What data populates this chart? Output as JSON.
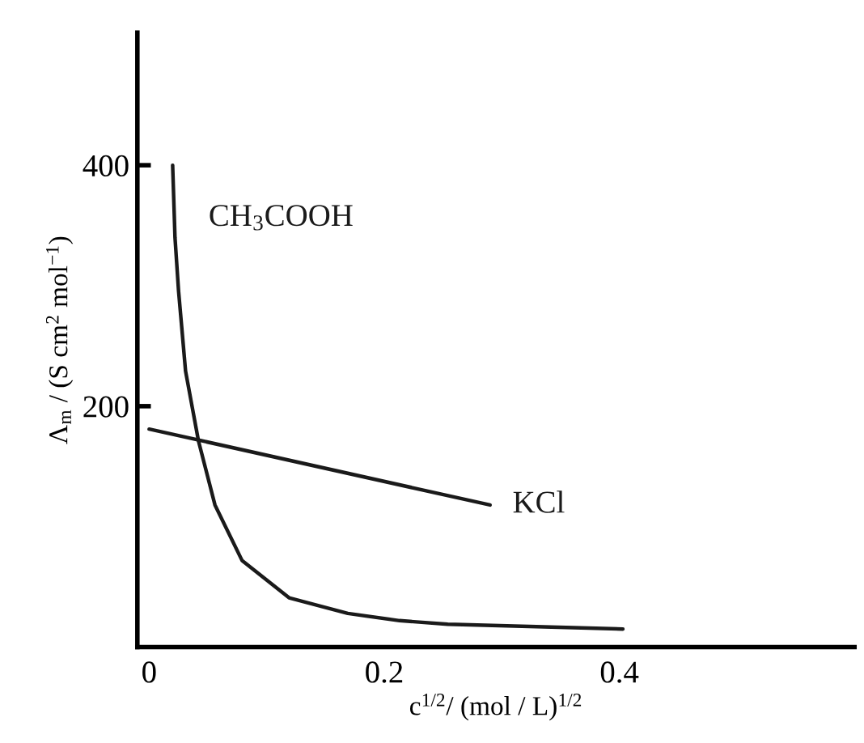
{
  "chart_data": {
    "type": "line",
    "xlabel": "c$^{1/2}$/ (mol / L)$^{1/2}$",
    "ylabel": "Λ$_{m}$ / (S cm$^{2}$ mol$^{−1}$)",
    "series": [
      {
        "name": "CH$_{3}$COOH",
        "color": "#1a1a1a",
        "x": [
          0.02,
          0.022,
          0.025,
          0.031,
          0.042,
          0.056,
          0.079,
          0.119,
          0.169,
          0.213,
          0.254,
          0.403
        ],
        "values": [
          400,
          340,
          296,
          229,
          171,
          118,
          72,
          41,
          28,
          22,
          19,
          15
        ]
      },
      {
        "name": "KCl",
        "color": "#1a1a1a",
        "x": [
          0,
          0.29
        ],
        "values": [
          181,
          118
        ]
      }
    ],
    "xlim": [
      -0.01,
      0.6
    ],
    "ylim": [
      0,
      510
    ],
    "xticks": [
      0,
      0.2,
      0.4
    ],
    "yticks": [
      200,
      400
    ],
    "grid": false,
    "legend": false,
    "marker": "none",
    "line_style": "solid"
  }
}
